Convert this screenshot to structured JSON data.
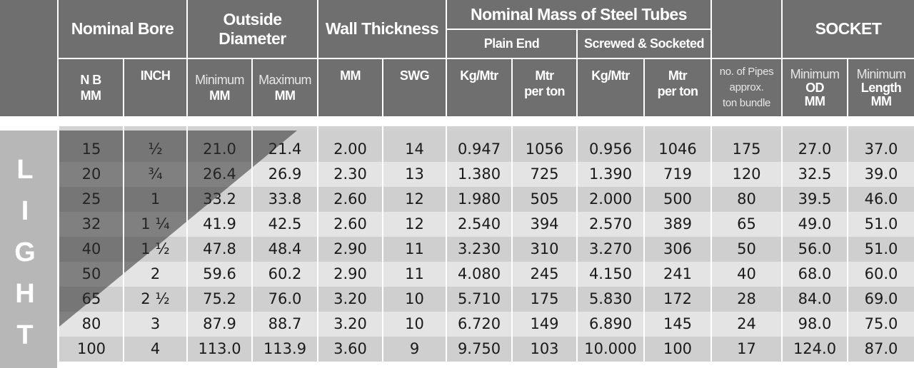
{
  "header": {
    "nominal_bore": "Nominal Bore",
    "outside_diameter": "Outside Diameter",
    "wall_thickness": "Wall Thickness",
    "nominal_mass": "Nominal Mass of Steel Tubes",
    "plain_end": "Plain End",
    "screwed_socketed": "Screwed & Socketed",
    "socket": "SOCKET",
    "nb_line1": "N B",
    "nb_line2": "MM",
    "inch": "INCH",
    "od_min_line1": "Minimum",
    "od_min_line2": "MM",
    "od_max_line1": "Maximum",
    "od_max_line2": "MM",
    "wt_mm": "MM",
    "wt_swg": "SWG",
    "pe_kg": "Kg/Mtr",
    "pe_mtr_line1": "Mtr",
    "pe_mtr_line2": "per ton",
    "ss_kg": "Kg/Mtr",
    "ss_mtr_line1": "Mtr",
    "ss_mtr_line2": "per ton",
    "pipes_line1": "no. of Pipes",
    "pipes_line2": "approx.",
    "pipes_line3": "ton bundle",
    "sock_od_line1": "Minimum",
    "sock_od_line2": "OD",
    "sock_od_line3": "MM",
    "sock_len_line1": "Minimum",
    "sock_len_line2": "Length",
    "sock_len_line3": "MM"
  },
  "side_label": [
    "L",
    "I",
    "G",
    "H",
    "T"
  ],
  "rows": [
    [
      "15",
      "½",
      "21.0",
      "21.4",
      "2.00",
      "14",
      "0.947",
      "1056",
      "0.956",
      "1046",
      "175",
      "27.0",
      "37.0"
    ],
    [
      "20",
      "¾",
      "26.4",
      "26.9",
      "2.30",
      "13",
      "1.380",
      "725",
      "1.390",
      "719",
      "120",
      "32.5",
      "39.0"
    ],
    [
      "25",
      "1",
      "33.2",
      "33.8",
      "2.60",
      "12",
      "1.980",
      "505",
      "2.000",
      "500",
      "80",
      "39.5",
      "46.0"
    ],
    [
      "32",
      "1 ¼",
      "41.9",
      "42.5",
      "2.60",
      "12",
      "2.540",
      "394",
      "2.570",
      "389",
      "65",
      "49.0",
      "51.0"
    ],
    [
      "40",
      "1 ½",
      "47.8",
      "48.4",
      "2.90",
      "11",
      "3.230",
      "310",
      "3.270",
      "306",
      "50",
      "56.0",
      "51.0"
    ],
    [
      "50",
      "2",
      "59.6",
      "60.2",
      "2.90",
      "11",
      "4.080",
      "245",
      "4.150",
      "241",
      "40",
      "68.0",
      "60.0"
    ],
    [
      "65",
      "2 ½",
      "75.2",
      "76.0",
      "3.20",
      "10",
      "5.710",
      "175",
      "5.830",
      "172",
      "28",
      "84.0",
      "69.0"
    ],
    [
      "80",
      "3",
      "87.9",
      "88.7",
      "3.20",
      "10",
      "6.720",
      "149",
      "6.890",
      "145",
      "24",
      "98.0",
      "75.0"
    ],
    [
      "100",
      "4",
      "113.0",
      "113.9",
      "3.60",
      "9",
      "9.750",
      "103",
      "10.000",
      "100",
      "17",
      "124.0",
      "87.0"
    ]
  ]
}
